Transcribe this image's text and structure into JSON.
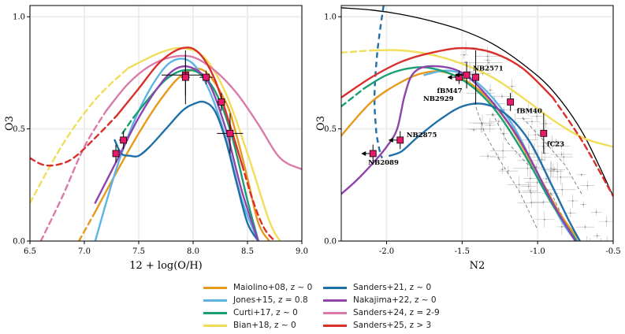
{
  "chart_data": [
    {
      "type": "line",
      "panel": "left",
      "xlabel": "12 + log(O/H)",
      "ylabel": "O3",
      "xlim": [
        6.5,
        9.0
      ],
      "ylim": [
        0.0,
        1.05
      ],
      "xticks": [
        "6.5",
        "7.0",
        "7.5",
        "8.0",
        "8.5",
        "9.0"
      ],
      "yticks": [
        "0.0",
        "0.5",
        "1.0"
      ],
      "grid": true,
      "series": [
        {
          "name": "Maiolino+08, z ~ 0",
          "color": "#e69a1c",
          "dash_below": 7.17,
          "x": [
            6.95,
            7.1,
            7.3,
            7.5,
            7.7,
            7.9,
            8.1,
            8.3,
            8.4,
            8.5,
            8.6,
            8.7
          ],
          "y": [
            0.0,
            0.13,
            0.31,
            0.48,
            0.63,
            0.74,
            0.76,
            0.62,
            0.47,
            0.28,
            0.08,
            0.0
          ]
        },
        {
          "name": "Jones+15, z = 0.8",
          "color": "#5fb3e3",
          "dash_below": 7.28,
          "x": [
            7.1,
            7.3,
            7.5,
            7.7,
            7.85,
            8.0,
            8.15,
            8.3,
            8.45,
            8.6
          ],
          "y": [
            0.0,
            0.33,
            0.58,
            0.75,
            0.81,
            0.79,
            0.67,
            0.46,
            0.18,
            0.0
          ]
        },
        {
          "name": "Curti+17, z ~ 0",
          "color": "#1a9e74",
          "dash_below": 7.6,
          "x": [
            7.35,
            7.45,
            7.6,
            7.75,
            7.9,
            8.05,
            8.2,
            8.35,
            8.5,
            8.6
          ],
          "y": [
            0.48,
            0.55,
            0.64,
            0.72,
            0.76,
            0.75,
            0.67,
            0.48,
            0.18,
            0.0
          ]
        },
        {
          "name": "Bian+18, z ~ 0",
          "color": "#f0de5a",
          "dash_below": 7.7,
          "x": [
            6.5,
            6.8,
            7.1,
            7.4,
            7.7,
            7.9,
            8.1,
            8.3,
            8.5,
            8.7,
            8.8
          ],
          "y": [
            0.17,
            0.43,
            0.63,
            0.77,
            0.84,
            0.86,
            0.82,
            0.66,
            0.39,
            0.09,
            0.0
          ]
        },
        {
          "name": "Sanders+21, z ~ 0",
          "color": "#1f6fa8",
          "dash_below": 0,
          "x": [
            7.28,
            7.34,
            7.42,
            7.5,
            7.6,
            7.75,
            7.9,
            8.0,
            8.1,
            8.2,
            8.3,
            8.4,
            8.5,
            8.6
          ],
          "y": [
            0.45,
            0.39,
            0.38,
            0.38,
            0.42,
            0.5,
            0.58,
            0.61,
            0.62,
            0.58,
            0.45,
            0.26,
            0.08,
            0.0
          ]
        },
        {
          "name": "Nakajima+22, z ~ 0",
          "color": "#8e44ad",
          "dash_below": 0,
          "x": [
            7.1,
            7.3,
            7.5,
            7.7,
            7.85,
            8.0,
            8.15,
            8.3,
            8.45,
            8.6
          ],
          "y": [
            0.17,
            0.36,
            0.55,
            0.7,
            0.77,
            0.77,
            0.7,
            0.5,
            0.22,
            0.0
          ]
        },
        {
          "name": "Sanders+24, z = 2-9",
          "color": "#d97aaa",
          "dash_below": 7.35,
          "x": [
            6.6,
            6.8,
            7.0,
            7.2,
            7.4,
            7.6,
            7.8,
            8.0,
            8.2,
            8.4,
            8.6,
            8.8,
            9.0
          ],
          "y": [
            0.0,
            0.2,
            0.42,
            0.58,
            0.7,
            0.78,
            0.82,
            0.82,
            0.76,
            0.66,
            0.52,
            0.37,
            0.32
          ]
        },
        {
          "name": "Sanders+25, z > 3",
          "color": "#d9302b",
          "dash_below": 7.45,
          "dash_above": 8.45,
          "x": [
            6.5,
            6.62,
            6.75,
            6.9,
            7.1,
            7.3,
            7.5,
            7.7,
            7.9,
            8.05,
            8.2,
            8.35,
            8.45,
            8.55,
            8.65,
            8.75
          ],
          "y": [
            0.37,
            0.34,
            0.34,
            0.37,
            0.46,
            0.56,
            0.68,
            0.8,
            0.86,
            0.84,
            0.72,
            0.5,
            0.34,
            0.18,
            0.06,
            0.0
          ]
        }
      ],
      "points": [
        {
          "x": 7.29,
          "y": 0.39,
          "xerr": 0.03,
          "yerr": 0.04
        },
        {
          "x": 7.36,
          "y": 0.45,
          "xerr": 0.04,
          "yerr": 0.04
        },
        {
          "x": 7.93,
          "y": 0.74,
          "xerr": 0.22,
          "yerr": 0.09
        },
        {
          "x": 7.93,
          "y": 0.73,
          "xerr": 0.04,
          "yerr": 0.12
        },
        {
          "x": 8.12,
          "y": 0.73,
          "xerr": 0.06,
          "yerr": 0.03
        },
        {
          "x": 8.26,
          "y": 0.62,
          "xerr": 0.04,
          "yerr": 0.04
        },
        {
          "x": 8.34,
          "y": 0.48,
          "xerr": 0.12,
          "yerr": 0.09
        }
      ]
    },
    {
      "type": "line",
      "panel": "right",
      "xlabel": "N2",
      "ylabel": "O3",
      "xlim": [
        -2.3,
        -0.5
      ],
      "ylim": [
        0.0,
        1.05
      ],
      "xticks": [
        "-2.0",
        "-1.5",
        "-1.0",
        "-0.5"
      ],
      "yticks": [
        "0.0",
        "0.5",
        "1.0"
      ],
      "grid": true,
      "series": [
        {
          "name": "Maiolino+08, z ~ 0",
          "color": "#e69a1c",
          "dash_below": 0,
          "x": [
            -2.3,
            -2.1,
            -1.9,
            -1.75,
            -1.6,
            -1.4,
            -1.2,
            -1.0,
            -0.85,
            -0.72
          ],
          "y": [
            0.47,
            0.62,
            0.71,
            0.75,
            0.75,
            0.68,
            0.53,
            0.3,
            0.12,
            0.0
          ]
        },
        {
          "name": "Jones+15, z = 0.8",
          "color": "#5fb3e3",
          "dash_below": 0,
          "x": [
            -1.75,
            -1.6,
            -1.45,
            -1.3,
            -1.15,
            -1.0,
            -0.85,
            -0.75
          ],
          "y": [
            0.74,
            0.76,
            0.73,
            0.64,
            0.5,
            0.3,
            0.1,
            0.0
          ]
        },
        {
          "name": "Curti+17, z ~ 0",
          "color": "#1a9e74",
          "dash_below": -2.0,
          "x": [
            -2.3,
            -2.15,
            -2.0,
            -1.85,
            -1.7,
            -1.5,
            -1.3,
            -1.1,
            -0.9,
            -0.74
          ],
          "y": [
            0.6,
            0.68,
            0.74,
            0.77,
            0.77,
            0.72,
            0.6,
            0.4,
            0.16,
            0.0
          ]
        },
        {
          "name": "Bian+18, z ~ 0",
          "color": "#f0de5a",
          "dash_below": -1.9,
          "x": [
            -2.3,
            -2.1,
            -1.9,
            -1.7,
            -1.5,
            -1.3,
            -1.1,
            -0.9,
            -0.7,
            -0.5
          ],
          "y": [
            0.84,
            0.85,
            0.85,
            0.83,
            0.79,
            0.73,
            0.64,
            0.54,
            0.46,
            0.42
          ]
        },
        {
          "name": "Sanders+21, z ~ 0",
          "color": "#1f6fa8",
          "dash_below": 0,
          "x": [
            -1.98,
            -1.9,
            -1.8,
            -1.65,
            -1.5,
            -1.35,
            -1.2,
            -1.05,
            -0.9,
            -0.8,
            -0.72
          ],
          "y": [
            0.38,
            0.4,
            0.46,
            0.54,
            0.6,
            0.61,
            0.56,
            0.44,
            0.24,
            0.1,
            0.0
          ]
        },
        {
          "name": "Nakajima+22, z ~ 0",
          "color": "#8e44ad",
          "dash_below": 0,
          "x": [
            -2.3,
            -2.2,
            -2.1,
            -2.0,
            -1.93,
            -1.88,
            -1.82,
            -1.7,
            -1.5,
            -1.3,
            -1.1,
            -0.9,
            -0.75
          ],
          "y": [
            0.21,
            0.27,
            0.34,
            0.42,
            0.5,
            0.65,
            0.75,
            0.78,
            0.75,
            0.62,
            0.43,
            0.17,
            0.0
          ]
        },
        {
          "name": "Sanders+25, z > 3",
          "color": "#d9302b",
          "dash_below": 0,
          "dash_above": -0.85,
          "x": [
            -2.3,
            -2.1,
            -1.9,
            -1.7,
            -1.5,
            -1.3,
            -1.1,
            -0.9,
            -0.7,
            -0.5
          ],
          "y": [
            0.64,
            0.73,
            0.8,
            0.84,
            0.86,
            0.84,
            0.77,
            0.64,
            0.44,
            0.2
          ]
        }
      ],
      "extra_lines": [
        {
          "name": "upper-envelope",
          "color": "#000000",
          "dash": false,
          "x": [
            -2.3,
            -2.1,
            -1.9,
            -1.7,
            -1.5,
            -1.3,
            -1.1,
            -0.9,
            -0.7,
            -0.5
          ],
          "y": [
            1.04,
            1.03,
            1.01,
            0.98,
            0.94,
            0.88,
            0.79,
            0.67,
            0.48,
            0.2
          ]
        },
        {
          "name": "jones-branch",
          "color": "#1f6fa8",
          "dash": true,
          "x": [
            -2.02,
            -2.06,
            -2.08,
            -2.07,
            -2.06,
            -2.045,
            -2.03
          ],
          "y": [
            1.05,
            0.85,
            0.65,
            0.5,
            0.45,
            0.4,
            0.37
          ]
        }
      ],
      "points": [
        {
          "x": -2.09,
          "y": 0.39,
          "upper_x": true,
          "yerr": 0.04,
          "label": "NB2089"
        },
        {
          "x": -1.91,
          "y": 0.45,
          "upper_x": true,
          "yerr": 0.04,
          "label": "NB2875"
        },
        {
          "x": -1.52,
          "y": 0.73,
          "upper_x": true,
          "yerr": 0.03,
          "label": "fBM47"
        },
        {
          "x": -1.47,
          "y": 0.74,
          "upper_x": true,
          "yerr": 0.06,
          "label": "NB2571"
        },
        {
          "x": -1.41,
          "y": 0.73,
          "xerr": 0.02,
          "yerr": 0.12,
          "label": "NB2929"
        },
        {
          "x": -1.18,
          "y": 0.62,
          "xerr": 0.02,
          "yerr": 0.04,
          "label": "fBM40"
        },
        {
          "x": -0.96,
          "y": 0.48,
          "xerr": 0.02,
          "yerr": 0.09,
          "label": "fC23"
        }
      ]
    }
  ],
  "legend": [
    {
      "label": "Maiolino+08, z ~ 0",
      "color": "#e69a1c"
    },
    {
      "label": "Sanders+21, z ~ 0",
      "color": "#1f6fa8"
    },
    {
      "label": "Jones+15, z = 0.8",
      "color": "#5fb3e3"
    },
    {
      "label": "Nakajima+22, z ~ 0",
      "color": "#8e44ad"
    },
    {
      "label": "Curti+17, z ~ 0",
      "color": "#1a9e74"
    },
    {
      "label": "Sanders+24, z = 2-9",
      "color": "#d97aaa"
    },
    {
      "label": "Bian+18, z ~ 0",
      "color": "#f0de5a"
    },
    {
      "label": "Sanders+25, z > 3",
      "color": "#d9302b"
    }
  ],
  "colors": {
    "marker_fill": "#e8186a",
    "marker_edge": "#000000",
    "grid": "#eeeeee",
    "background_points": "#b8b8b8"
  }
}
